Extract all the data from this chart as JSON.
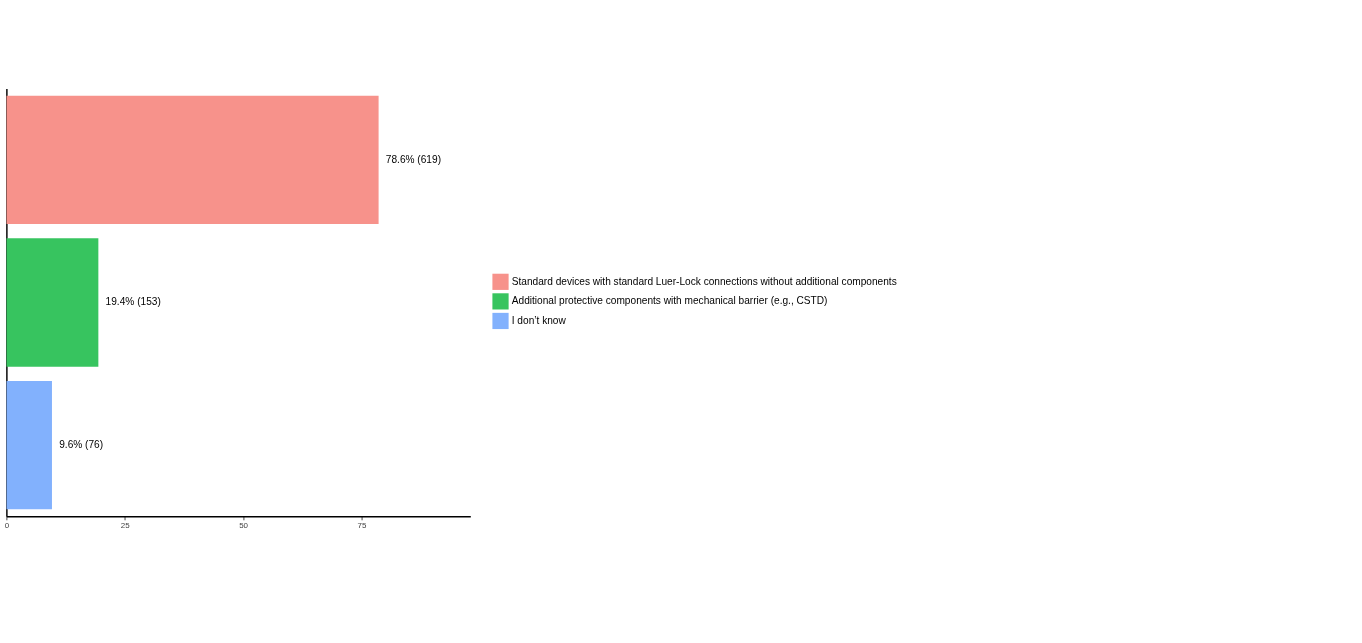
{
  "chart_data": {
    "type": "bar",
    "orientation": "horizontal",
    "categories": [
      null,
      null,
      null
    ],
    "series": [
      {
        "name": "Standard devices with standard Luer-Lock connections without additional components",
        "color": "#f7928b",
        "values": [
          78.6,
          null,
          null
        ],
        "value_labels": [
          "78.6% (619)",
          null,
          null
        ]
      },
      {
        "name": "Additional protective components with mechanical barrier (e.g., CSTD)",
        "color": "#37c45f",
        "values": [
          null,
          19.4,
          null
        ],
        "value_labels": [
          null,
          "19.4% (153)",
          null
        ]
      },
      {
        "name": "I don’t know",
        "color": "#82b1fd",
        "values": [
          null,
          null,
          9.6
        ],
        "value_labels": [
          null,
          null,
          "9.6% (76)"
        ]
      }
    ],
    "xlim": [
      0,
      98
    ],
    "xticks": [
      0,
      25,
      50,
      75
    ],
    "tick_labels": "x",
    "grid": false,
    "legend": "right"
  }
}
